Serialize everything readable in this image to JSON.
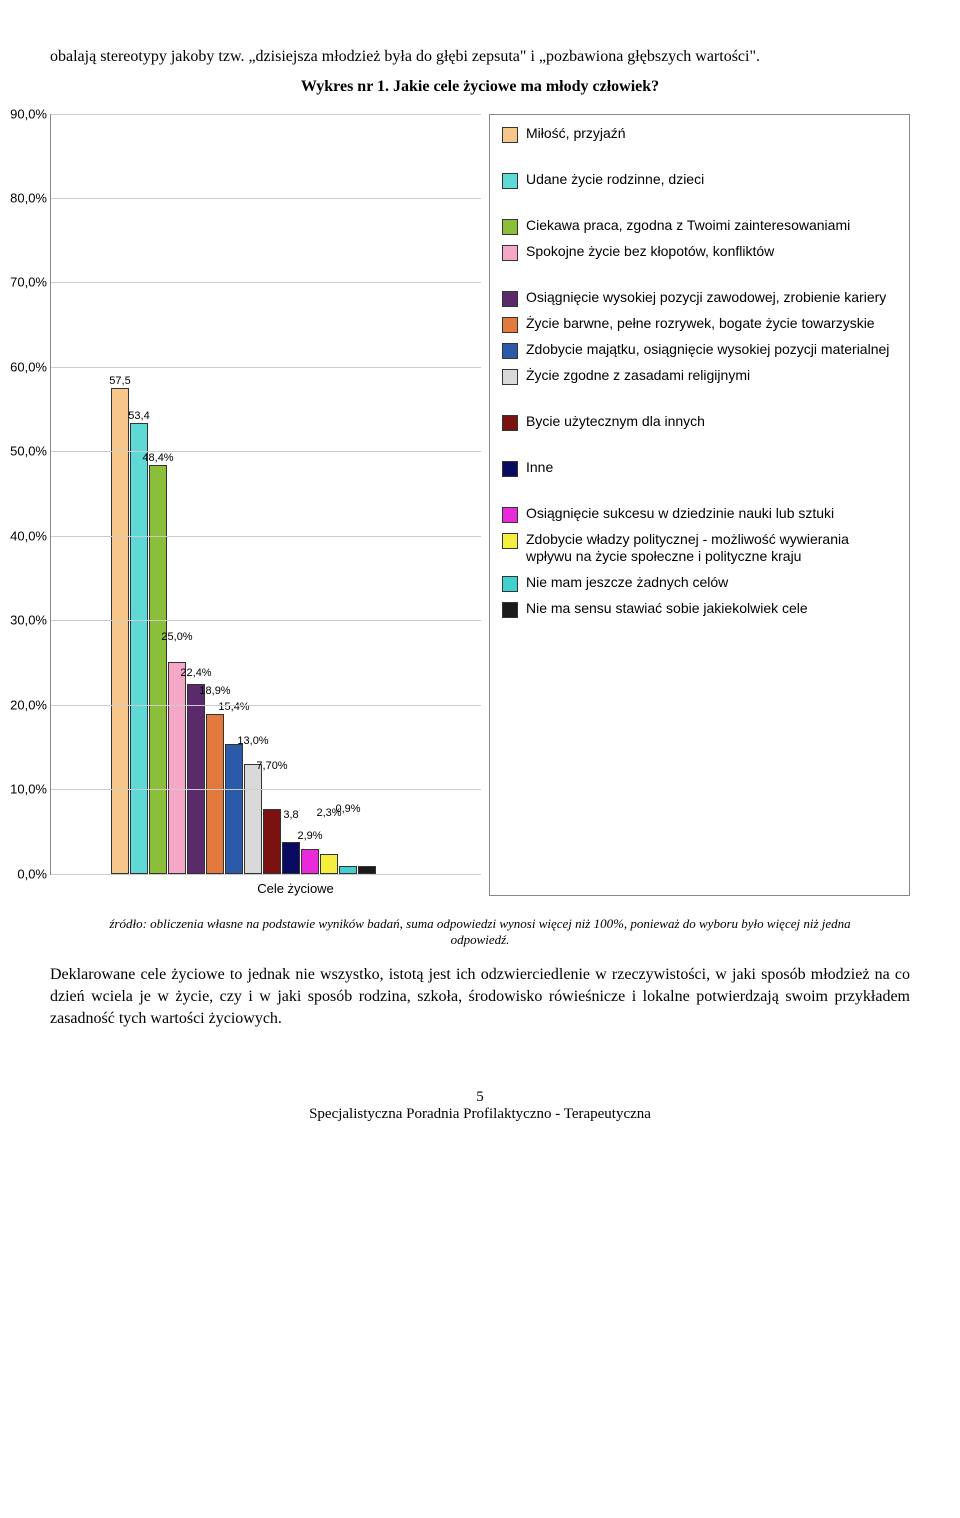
{
  "intro_text": "obalają stereotypy jakoby tzw. „dzisiejsza młodzież była do głębi zepsuta\" i „pozbawiona głębszych wartości\".",
  "chart_title": "Wykres nr 1. Jakie cele życiowe ma młody człowiek?",
  "chart": {
    "ylim": [
      0,
      90
    ],
    "ytick_step": 10,
    "yticks": [
      "0,0%",
      "10,0%",
      "20,0%",
      "30,0%",
      "40,0%",
      "50,0%",
      "60,0%",
      "70,0%",
      "80,0%",
      "90,0%"
    ],
    "x_label": "Cele życiowe",
    "bars": [
      {
        "value": 57.5,
        "label": "57,5",
        "color": "#f6c68a"
      },
      {
        "value": 53.4,
        "label": "53,4",
        "color": "#5fd9d6"
      },
      {
        "value": 48.4,
        "label": "48,4%",
        "color": "#8bbf3a"
      },
      {
        "value": 25.0,
        "label": "25,0%",
        "color": "#f5a7c8"
      },
      {
        "value": 22.4,
        "label": "22,4%",
        "color": "#5b2a6b"
      },
      {
        "value": 18.9,
        "label": "18,9%",
        "color": "#e27a3e"
      },
      {
        "value": 15.4,
        "label": "15,4%",
        "color": "#2a5aa8"
      },
      {
        "value": 13.0,
        "label": "13,0%",
        "color": "#d9d9d9"
      },
      {
        "value": 7.7,
        "label": "7,70%",
        "color": "#7a1212"
      },
      {
        "value": 3.8,
        "label": "3,8",
        "color": "#0a0a60"
      },
      {
        "value": 2.9,
        "label": "2,9%",
        "color": "#e82ad8"
      },
      {
        "value": 2.3,
        "label": "2,3%",
        "color": "#f4ee3e"
      },
      {
        "value": 0.9,
        "label": "0,9%",
        "color": "#41d0cf"
      },
      {
        "value": 0.9,
        "label": "",
        "color": "#1a1a1a"
      }
    ]
  },
  "legend_groups": [
    [
      {
        "color": "#f6c68a",
        "label": "Miłość, przyjaźń"
      }
    ],
    [
      {
        "color": "#5fd9d6",
        "label": "Udane życie rodzinne, dzieci"
      }
    ],
    [
      {
        "color": "#8bbf3a",
        "label": "Ciekawa praca, zgodna z Twoimi zainteresowaniami"
      },
      {
        "color": "#f5a7c8",
        "label": "Spokojne życie bez kłopotów, konfliktów"
      }
    ],
    [
      {
        "color": "#5b2a6b",
        "label": "Osiągnięcie wysokiej pozycji zawodowej, zrobienie kariery"
      },
      {
        "color": "#e27a3e",
        "label": "Życie barwne, pełne rozrywek, bogate życie towarzyskie"
      },
      {
        "color": "#2a5aa8",
        "label": "Zdobycie majątku, osiągnięcie wysokiej pozycji materialnej"
      },
      {
        "color": "#d9d9d9",
        "label": "Życie zgodne z zasadami religijnymi"
      }
    ],
    [
      {
        "color": "#7a1212",
        "label": "Bycie użytecznym dla innych"
      }
    ],
    [
      {
        "color": "#0a0a60",
        "label": "Inne"
      }
    ],
    [
      {
        "color": "#e82ad8",
        "label": "Osiągnięcie sukcesu w dziedzinie nauki lub sztuki"
      },
      {
        "color": "#f4ee3e",
        "label": "Zdobycie władzy politycznej - możliwość wywierania wpływu na życie społeczne i polityczne kraju"
      },
      {
        "color": "#41d0cf",
        "label": "Nie mam jeszcze żadnych celów"
      },
      {
        "color": "#1a1a1a",
        "label": "Nie ma sensu stawiać sobie jakiekolwiek cele"
      }
    ]
  ],
  "source_note": "źródło: obliczenia własne na podstawie wyników badań, suma odpowiedzi wynosi więcej niż 100%, ponieważ do wyboru było więcej niż jedna odpowiedź.",
  "body_text": "Deklarowane cele życiowe to jednak nie wszystko, istotą jest ich odzwierciedlenie w rzeczywistości, w jaki sposób młodzież na co dzień wciela je w życie, czy i w jaki sposób rodzina, szkoła, środowisko rówieśnicze i lokalne potwierdzają swoim przykładem zasadność tych wartości życiowych.",
  "page_number": "5",
  "footer": "Specjalistyczna Poradnia Profilaktyczno - Terapeutyczna"
}
